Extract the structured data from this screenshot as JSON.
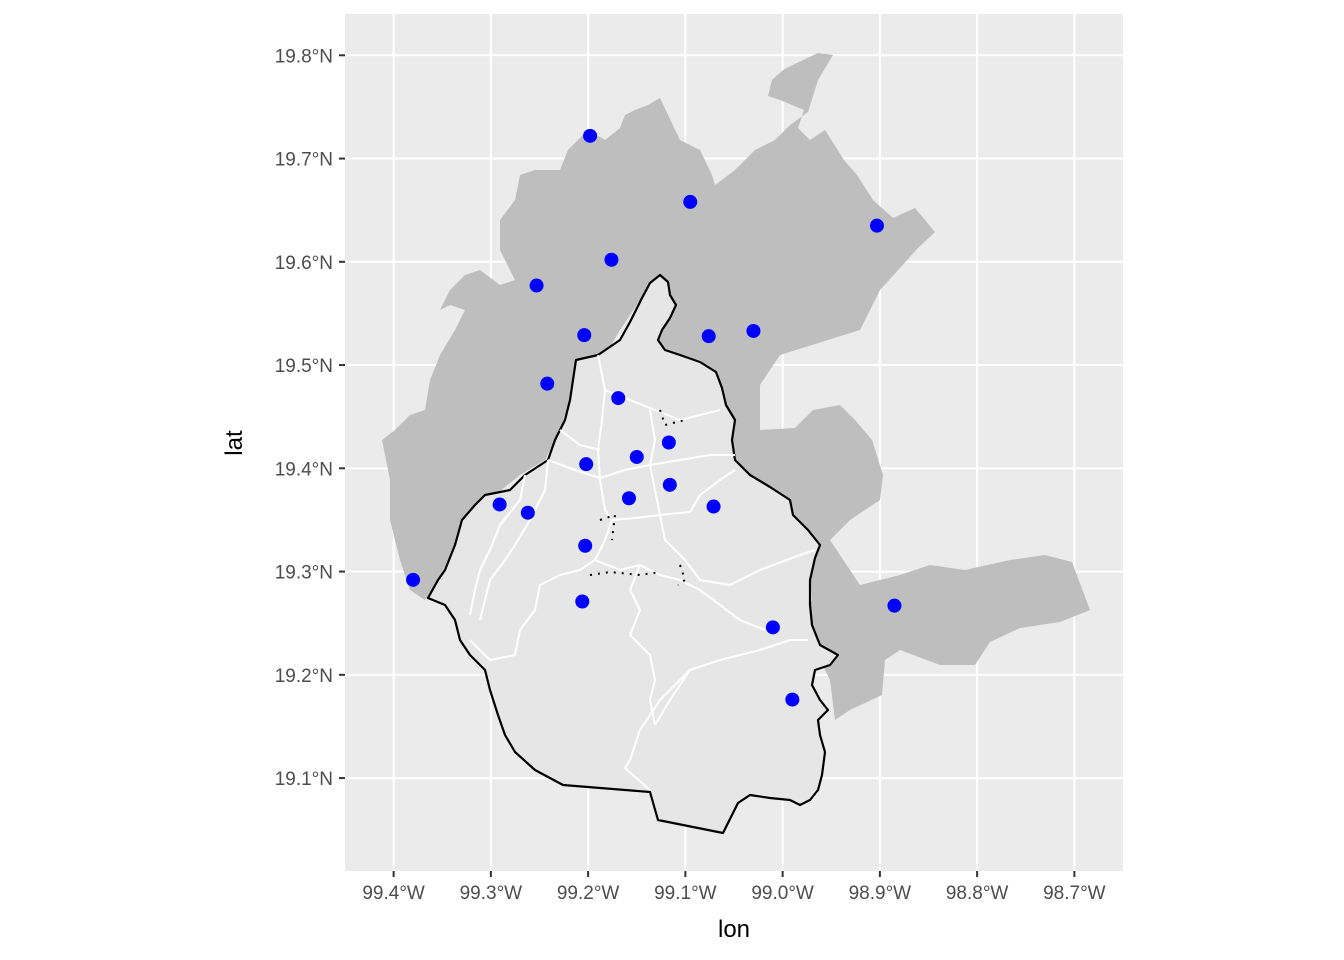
{
  "chart_data": {
    "type": "scatter",
    "xlabel": "lon",
    "ylabel": "lat",
    "xlim": [
      -99.45,
      -98.65
    ],
    "ylim": [
      19.01,
      19.84
    ],
    "x_ticks": [
      {
        "value": -99.4,
        "label": "99.4°W"
      },
      {
        "value": -99.3,
        "label": "99.3°W"
      },
      {
        "value": -99.2,
        "label": "99.2°W"
      },
      {
        "value": -99.1,
        "label": "99.1°W"
      },
      {
        "value": -99.0,
        "label": "99.0°W"
      },
      {
        "value": -98.9,
        "label": "98.9°W"
      },
      {
        "value": -98.8,
        "label": "98.8°W"
      },
      {
        "value": -98.7,
        "label": "98.7°W"
      }
    ],
    "y_ticks": [
      {
        "value": 19.1,
        "label": "19.1°N"
      },
      {
        "value": 19.2,
        "label": "19.2°N"
      },
      {
        "value": 19.3,
        "label": "19.3°N"
      },
      {
        "value": 19.4,
        "label": "19.4°N"
      },
      {
        "value": 19.5,
        "label": "19.5°N"
      },
      {
        "value": 19.6,
        "label": "19.6°N"
      },
      {
        "value": 19.7,
        "label": "19.7°N"
      },
      {
        "value": 19.8,
        "label": "19.8°N"
      }
    ],
    "grid": true,
    "points": [
      {
        "lon": -99.198,
        "lat": 19.722
      },
      {
        "lon": -99.095,
        "lat": 19.658
      },
      {
        "lon": -98.903,
        "lat": 19.635
      },
      {
        "lon": -99.176,
        "lat": 19.602
      },
      {
        "lon": -99.253,
        "lat": 19.577
      },
      {
        "lon": -99.204,
        "lat": 19.529
      },
      {
        "lon": -99.076,
        "lat": 19.528
      },
      {
        "lon": -99.03,
        "lat": 19.533
      },
      {
        "lon": -99.242,
        "lat": 19.482
      },
      {
        "lon": -99.169,
        "lat": 19.468
      },
      {
        "lon": -99.117,
        "lat": 19.425
      },
      {
        "lon": -99.15,
        "lat": 19.411
      },
      {
        "lon": -99.202,
        "lat": 19.404
      },
      {
        "lon": -99.116,
        "lat": 19.384
      },
      {
        "lon": -99.158,
        "lat": 19.371
      },
      {
        "lon": -99.071,
        "lat": 19.363
      },
      {
        "lon": -99.291,
        "lat": 19.365
      },
      {
        "lon": -99.262,
        "lat": 19.357
      },
      {
        "lon": -99.203,
        "lat": 19.325
      },
      {
        "lon": -99.38,
        "lat": 19.292
      },
      {
        "lon": -99.206,
        "lat": 19.271
      },
      {
        "lon": -98.885,
        "lat": 19.267
      },
      {
        "lon": -99.01,
        "lat": 19.246
      },
      {
        "lon": -98.99,
        "lat": 19.176
      }
    ]
  },
  "colors": {
    "panel_background": "#ebebeb",
    "grid": "#ffffff",
    "outer_region_fill": "#bebebe",
    "city_fill": "#e6e6e6",
    "city_border": "#000000",
    "district_lines": "#ffffff",
    "points": "#0000ff"
  }
}
